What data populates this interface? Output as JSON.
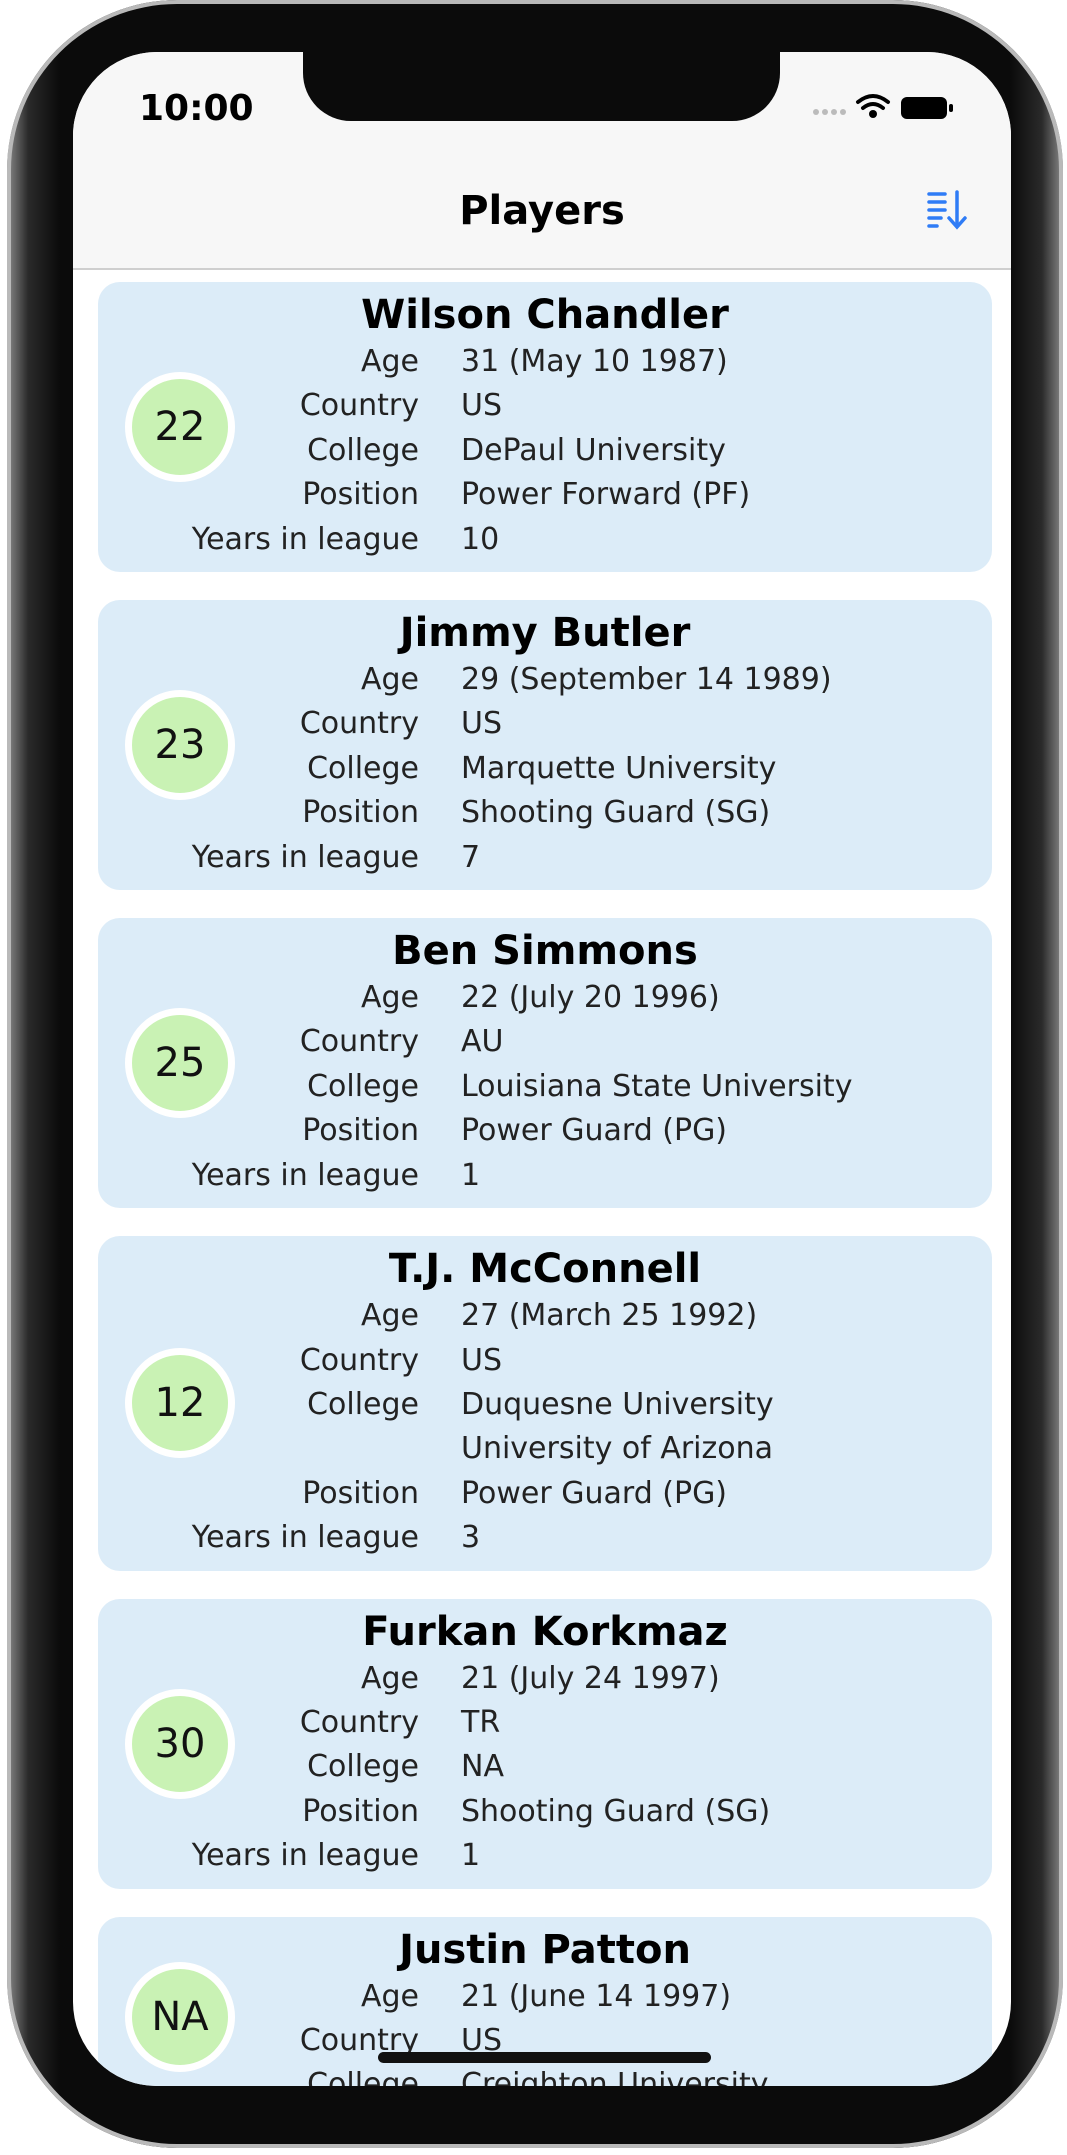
{
  "status_bar": {
    "time": "10:00"
  },
  "nav": {
    "title": "Players"
  },
  "players": [
    {
      "name": "Wilson Chandler",
      "number": "22",
      "fields": [
        {
          "label": "Age",
          "value": "31 (May 10 1987)"
        },
        {
          "label": "Country",
          "value": "US"
        },
        {
          "label": "College",
          "value": "DePaul University"
        },
        {
          "label": "Position",
          "value": "Power Forward (PF)"
        },
        {
          "label": "Years in league",
          "value": "10"
        }
      ]
    },
    {
      "name": "Jimmy Butler",
      "number": "23",
      "fields": [
        {
          "label": "Age",
          "value": "29 (September 14 1989)"
        },
        {
          "label": "Country",
          "value": "US"
        },
        {
          "label": "College",
          "value": "Marquette University"
        },
        {
          "label": "Position",
          "value": "Shooting Guard (SG)"
        },
        {
          "label": "Years in league",
          "value": "7"
        }
      ]
    },
    {
      "name": "Ben Simmons",
      "number": "25",
      "fields": [
        {
          "label": "Age",
          "value": "22 (July 20 1996)"
        },
        {
          "label": "Country",
          "value": "AU"
        },
        {
          "label": "College",
          "value": "Louisiana State University"
        },
        {
          "label": "Position",
          "value": "Power Guard (PG)"
        },
        {
          "label": "Years in league",
          "value": "1"
        }
      ]
    },
    {
      "name": "T.J. McConnell",
      "number": "12",
      "fields": [
        {
          "label": "Age",
          "value": "27 (March 25 1992)"
        },
        {
          "label": "Country",
          "value": "US"
        },
        {
          "label": "College",
          "value": "Duquesne University University of Arizona"
        },
        {
          "label": "Position",
          "value": "Power Guard (PG)"
        },
        {
          "label": "Years in league",
          "value": "3"
        }
      ]
    },
    {
      "name": "Furkan Korkmaz",
      "number": "30",
      "fields": [
        {
          "label": "Age",
          "value": "21 (July 24 1997)"
        },
        {
          "label": "Country",
          "value": "TR"
        },
        {
          "label": "College",
          "value": "NA"
        },
        {
          "label": "Position",
          "value": "Shooting Guard (SG)"
        },
        {
          "label": "Years in league",
          "value": "1"
        }
      ]
    },
    {
      "name": "Justin Patton",
      "number": "NA",
      "fields": [
        {
          "label": "Age",
          "value": "21 (June 14 1997)"
        },
        {
          "label": "Country",
          "value": "US"
        },
        {
          "label": "College",
          "value": "Creighton University"
        }
      ]
    }
  ]
}
